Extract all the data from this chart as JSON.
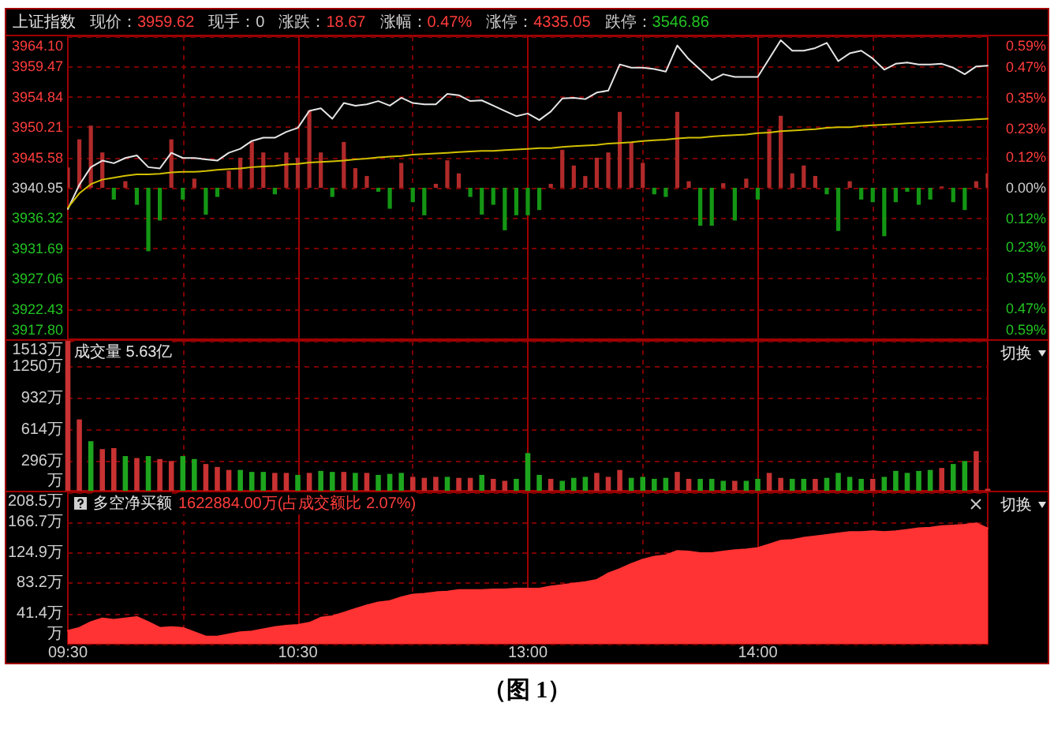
{
  "chart_data": [
    {
      "type": "line",
      "title": "上证指数",
      "annotations": [
        "现价：3959.62",
        "现手：0",
        "涨跌：18.67",
        "涨幅：0.47%",
        "涨停：4335.05",
        "跌停：3546.86"
      ],
      "categories": [
        null,
        null,
        null,
        null,
        null,
        null,
        null,
        null,
        null,
        null,
        null,
        null,
        null,
        null,
        null,
        null,
        null,
        null,
        null,
        null,
        null,
        null,
        null,
        null,
        null,
        null,
        null,
        null,
        null,
        null,
        null,
        null,
        null,
        null,
        null,
        null,
        null,
        null,
        null,
        null,
        null,
        null,
        null,
        null,
        null,
        null,
        null,
        null,
        null,
        null,
        null,
        null,
        null,
        null,
        null,
        null,
        null,
        null,
        null,
        null,
        null,
        null,
        null,
        null,
        null,
        null,
        null,
        null,
        null,
        null,
        null,
        null,
        null,
        null,
        null,
        null,
        null,
        null,
        null,
        null,
        null
      ],
      "series": [
        {
          "color": "#e6e6e6",
          "values": [
            3937.7,
            3941.4,
            3944.1,
            3945.1,
            3944.7,
            3945.5,
            3945.9,
            3944.1,
            3943.9,
            3946.3,
            3945.5,
            3945.5,
            3945.3,
            3945.1,
            3946.3,
            3946.9,
            3948.1,
            3948.6,
            3948.6,
            3949.5,
            3950.1,
            3952.7,
            3953.1,
            3951.5,
            3953.9,
            3953.5,
            3953.7,
            3954.2,
            3953.5,
            3954.7,
            3953.9,
            3953.7,
            3953.7,
            3955.3,
            3955.1,
            3954.2,
            3954.3,
            3953.5,
            3952.7,
            3951.9,
            3952.3,
            3951.3,
            3952.6,
            3954.6,
            3954.7,
            3954.5,
            3955.5,
            3955.8,
            3959.8,
            3959.3,
            3959.3,
            3959.1,
            3958.7,
            3962.7,
            3960.6,
            3959.0,
            3957.4,
            3958.3,
            3957.9,
            3957.9,
            3957.9,
            3960.7,
            3963.5,
            3961.9,
            3961.9,
            3962.3,
            3963.1,
            3960.3,
            3961.5,
            3961.9,
            3960.7,
            3959.0,
            3959.9,
            3960.1,
            3959.8,
            3959.8,
            3959.9,
            3959.3,
            3958.3,
            3959.5,
            3959.6
          ]
        },
        {
          "color": "#d2c000",
          "values": [
            3937.9,
            3940.1,
            3941.5,
            3942.2,
            3942.5,
            3942.8,
            3943.0,
            3943.0,
            3943.1,
            3943.3,
            3943.4,
            3943.4,
            3943.5,
            3943.7,
            3943.8,
            3943.9,
            3944.1,
            3944.2,
            3944.3,
            3944.5,
            3944.6,
            3944.8,
            3944.9,
            3945.0,
            3945.1,
            3945.3,
            3945.4,
            3945.6,
            3945.7,
            3945.8,
            3946.0,
            3946.1,
            3946.2,
            3946.3,
            3946.4,
            3946.5,
            3946.6,
            3946.6,
            3946.7,
            3946.8,
            3946.9,
            3947.0,
            3947.0,
            3947.2,
            3947.3,
            3947.4,
            3947.5,
            3947.7,
            3947.8,
            3947.9,
            3948.1,
            3948.2,
            3948.3,
            3948.5,
            3948.6,
            3948.6,
            3948.8,
            3948.9,
            3949.0,
            3949.1,
            3949.3,
            3949.4,
            3949.6,
            3949.7,
            3949.8,
            3949.9,
            3950.1,
            3950.2,
            3950.2,
            3950.4,
            3950.5,
            3950.6,
            3950.7,
            3950.8,
            3950.9,
            3951.0,
            3951.1,
            3951.2,
            3951.3,
            3951.4,
            3951.5
          ]
        },
        {
          "type": "bar",
          "base": [
            3940.95,
            3940.95,
            3940.95,
            3940.95,
            3940.95,
            3940.95,
            3940.95,
            3940.95,
            3940.95,
            3940.95,
            3940.95,
            3940.95,
            3940.95,
            3940.95,
            3940.95,
            3940.95,
            3940.95,
            3940.95,
            3940.95,
            3940.95,
            3940.95,
            3940.95,
            3940.95,
            3940.95,
            3940.95,
            3940.95,
            3940.95,
            3940.95,
            3940.95,
            3940.95,
            3940.95,
            3940.95,
            3940.95,
            3940.95,
            3940.95,
            3940.95,
            3940.95,
            3940.95,
            3940.95,
            3940.95,
            3940.95,
            3940.95,
            3940.95,
            3940.95,
            3940.95,
            3940.95,
            3940.95,
            3940.95,
            3940.95,
            3940.95,
            3940.95,
            3940.95,
            3940.95,
            3940.95,
            3940.95,
            3940.95,
            3940.95,
            3940.95,
            3940.95,
            3940.95,
            3940.95,
            3940.95,
            3940.95,
            3940.95,
            3940.95,
            3940.95,
            3940.95,
            3940.95,
            3940.95,
            3940.95,
            3940.95,
            3940.95,
            3940.95,
            3940.95,
            3940.95,
            3940.95,
            3940.95,
            3940.95,
            3940.95,
            3940.95,
            3940.95
          ],
          "values": [
            3.1,
            7.4,
            9.5,
            5.4,
            -1.8,
            1.0,
            -2.6,
            -9.7,
            -5.0,
            7.4,
            -1.8,
            1.4,
            -4.1,
            -1.4,
            2.6,
            4.6,
            7.0,
            5.4,
            -1.0,
            5.4,
            4.6,
            11.8,
            5.4,
            -1.4,
            7.0,
            3.0,
            1.8,
            -0.6,
            -3.2,
            3.8,
            -2.2,
            -4.2,
            0.6,
            4.2,
            2.2,
            -1.4,
            -4.1,
            -2.6,
            -6.5,
            -4.2,
            -4.2,
            -3.4,
            0.6,
            5.8,
            3.4,
            1.8,
            4.6,
            5.4,
            11.6,
            7.0,
            3.8,
            -1.0,
            -1.4,
            11.6,
            1.0,
            -5.8,
            -5.8,
            0.7,
            -5.0,
            1.4,
            -1.8,
            9.0,
            11.0,
            2.2,
            3.4,
            1.8,
            -1.0,
            -6.6,
            1.0,
            -1.8,
            -2.2,
            -7.4,
            -2.2,
            -0.6,
            -2.6,
            -1.8,
            0.2,
            -2.2,
            -3.4,
            1.0,
            2.2
          ],
          "colors": [
            "#b02a2a",
            "#b02a2a",
            "#b02a2a",
            "#b02a2a",
            "#149614",
            "#b02a2a",
            "#149614",
            "#149614",
            "#149614",
            "#b02a2a",
            "#149614",
            "#b02a2a",
            "#149614",
            "#149614",
            "#b02a2a",
            "#b02a2a",
            "#b02a2a",
            "#b02a2a",
            "#149614",
            "#b02a2a",
            "#b02a2a",
            "#b02a2a",
            "#b02a2a",
            "#149614",
            "#b02a2a",
            "#b02a2a",
            "#b02a2a",
            "#149614",
            "#149614",
            "#b02a2a",
            "#149614",
            "#149614",
            "#b02a2a",
            "#b02a2a",
            "#b02a2a",
            "#149614",
            "#149614",
            "#149614",
            "#149614",
            "#149614",
            "#149614",
            "#149614",
            "#b02a2a",
            "#b02a2a",
            "#b02a2a",
            "#b02a2a",
            "#b02a2a",
            "#b02a2a",
            "#b02a2a",
            "#b02a2a",
            "#b02a2a",
            "#149614",
            "#149614",
            "#b02a2a",
            "#b02a2a",
            "#149614",
            "#149614",
            "#b02a2a",
            "#149614",
            "#b02a2a",
            "#149614",
            "#b02a2a",
            "#b02a2a",
            "#b02a2a",
            "#b02a2a",
            "#b02a2a",
            "#149614",
            "#149614",
            "#b02a2a",
            "#149614",
            "#149614",
            "#149614",
            "#149614",
            "#149614",
            "#149614",
            "#149614",
            "#b02a2a",
            "#149614",
            "#149614",
            "#b02a2a",
            "#b02a2a"
          ]
        }
      ],
      "ylim": [
        3917.8,
        3964.1
      ],
      "yticks": [
        {
          "value": 3917.8,
          "label": "3917.80"
        },
        3922.43,
        3927.06,
        3931.69,
        3936.32,
        3940.95,
        3945.58,
        3950.21,
        3954.84,
        3959.47,
        {
          "value": 3964.1,
          "label": "3964.10"
        }
      ],
      "y2lim": [
        -0.59,
        0.59
      ],
      "y2ticks": [
        {
          "value": -0.59,
          "label": "0.59%"
        },
        {
          "value": -0.47,
          "label": "0.47%"
        },
        {
          "value": -0.35,
          "label": "0.35%"
        },
        {
          "value": -0.23,
          "label": "0.23%"
        },
        {
          "value": -0.12,
          "label": "0.12%"
        },
        {
          "value": 0,
          "label": "0.00%"
        },
        {
          "value": 0.12,
          "label": "0.12%"
        },
        {
          "value": 0.23,
          "label": "0.23%"
        },
        {
          "value": 0.35,
          "label": "0.35%"
        },
        {
          "value": 0.47,
          "label": "0.47%"
        },
        {
          "value": 0.59,
          "label": "0.59%"
        }
      ],
      "grid": true,
      "tick_labels": "y"
    },
    {
      "type": "bar",
      "title": "成交量 5.63亿",
      "annotations": [
        "切换"
      ],
      "categories": [
        null,
        null,
        null,
        null,
        null,
        null,
        null,
        null,
        null,
        null,
        null,
        null,
        null,
        null,
        null,
        null,
        null,
        null,
        null,
        null,
        null,
        null,
        null,
        null,
        null,
        null,
        null,
        null,
        null,
        null,
        null,
        null,
        null,
        null,
        null,
        null,
        null,
        null,
        null,
        null,
        null,
        null,
        null,
        null,
        null,
        null,
        null,
        null,
        null,
        null,
        null,
        null,
        null,
        null,
        null,
        null,
        null,
        null,
        null,
        null,
        null,
        null,
        null,
        null,
        null,
        null,
        null,
        null,
        null,
        null,
        null,
        null,
        null,
        null,
        null,
        null,
        null,
        null,
        null,
        null,
        null
      ],
      "values": [
        1513,
        720,
        500,
        420,
        430,
        350,
        330,
        350,
        320,
        300,
        350,
        320,
        270,
        240,
        210,
        210,
        190,
        190,
        180,
        180,
        160,
        180,
        200,
        190,
        190,
        180,
        180,
        160,
        170,
        180,
        140,
        130,
        140,
        140,
        130,
        130,
        160,
        120,
        100,
        120,
        380,
        160,
        120,
        100,
        130,
        140,
        180,
        140,
        210,
        130,
        140,
        120,
        130,
        190,
        120,
        120,
        120,
        100,
        100,
        100,
        120,
        180,
        130,
        120,
        120,
        120,
        130,
        180,
        140,
        120,
        120,
        140,
        200,
        180,
        200,
        210,
        230,
        270,
        300,
        400,
        20
      ],
      "colors": [
        "#c83232",
        "#c83232",
        "#1ea51e",
        "#c83232",
        "#c83232",
        "#1ea51e",
        "#c83232",
        "#1ea51e",
        "#c83232",
        "#c83232",
        "#1ea51e",
        "#1ea51e",
        "#c83232",
        "#c83232",
        "#c83232",
        "#1ea51e",
        "#1ea51e",
        "#1ea51e",
        "#c83232",
        "#c83232",
        "#1ea51e",
        "#c83232",
        "#1ea51e",
        "#1ea51e",
        "#c83232",
        "#1ea51e",
        "#c83232",
        "#1ea51e",
        "#1ea51e",
        "#1ea51e",
        "#c83232",
        "#c83232",
        "#c83232",
        "#1ea51e",
        "#c83232",
        "#c83232",
        "#1ea51e",
        "#c83232",
        "#c83232",
        "#1ea51e",
        "#1ea51e",
        "#1ea51e",
        "#c83232",
        "#1ea51e",
        "#1ea51e",
        "#1ea51e",
        "#c83232",
        "#c83232",
        "#c83232",
        "#1ea51e",
        "#1ea51e",
        "#1ea51e",
        "#1ea51e",
        "#c83232",
        "#c83232",
        "#1ea51e",
        "#1ea51e",
        "#1ea51e",
        "#c83232",
        "#1ea51e",
        "#1ea51e",
        "#c83232",
        "#c83232",
        "#1ea51e",
        "#1ea51e",
        "#c83232",
        "#1ea51e",
        "#1ea51e",
        "#1ea51e",
        "#1ea51e",
        "#c83232",
        "#1ea51e",
        "#1ea51e",
        "#1ea51e",
        "#1ea51e",
        "#1ea51e",
        "#c83232",
        "#1ea51e",
        "#1ea51e",
        "#c83232",
        "#c83232"
      ],
      "ylim": [
        0,
        1513
      ],
      "yticks": [
        {
          "value": 0,
          "label": "万"
        },
        {
          "value": 296,
          "label": "296万"
        },
        {
          "value": 614,
          "label": "614万"
        },
        {
          "value": 932,
          "label": "932万"
        },
        {
          "value": 1250,
          "label": "1250万"
        },
        {
          "value": 1513,
          "label": "1513万"
        }
      ],
      "grid": true,
      "tick_labels": "y"
    },
    {
      "type": "area",
      "title": "多空净买额",
      "subtitle": "1622884.00万(占成交额比 2.07%)",
      "annotations": [
        "切换",
        "（图 1）"
      ],
      "categories": [
        "09:30",
        null,
        null,
        null,
        null,
        null,
        null,
        null,
        null,
        null,
        null,
        null,
        null,
        null,
        null,
        null,
        null,
        null,
        null,
        null,
        "10:30",
        null,
        null,
        null,
        null,
        null,
        null,
        null,
        null,
        null,
        null,
        null,
        null,
        null,
        null,
        null,
        null,
        null,
        null,
        null,
        "13:00",
        null,
        null,
        null,
        null,
        null,
        null,
        null,
        null,
        null,
        null,
        null,
        null,
        null,
        null,
        null,
        null,
        null,
        null,
        null,
        "14:00",
        null,
        null,
        null,
        null,
        null,
        null,
        null,
        null,
        null,
        null,
        null,
        null,
        null,
        null,
        null,
        null,
        null,
        null,
        null,
        null
      ],
      "values": [
        18,
        22,
        30,
        35,
        33,
        35,
        37,
        30,
        22,
        23,
        22,
        16,
        10,
        10,
        13,
        16,
        17,
        20,
        23,
        25,
        26,
        29,
        36,
        38,
        43,
        48,
        53,
        57,
        59,
        64,
        68,
        69,
        71,
        72,
        74,
        74,
        74,
        75,
        75,
        76,
        76,
        76,
        79,
        81,
        83,
        85,
        88,
        97,
        103,
        110,
        116,
        120,
        122,
        128,
        127,
        125,
        125,
        127,
        129,
        130,
        132,
        137,
        142,
        143,
        146,
        148,
        150,
        152,
        154,
        154,
        155,
        154,
        155,
        157,
        159,
        160,
        162,
        163,
        164,
        166,
        159
      ],
      "color": "#ff3333",
      "ylim": [
        0,
        208.5
      ],
      "yticks": [
        {
          "value": 0,
          "label": "万"
        },
        {
          "value": 41.4,
          "label": "41.4万"
        },
        {
          "value": 83.2,
          "label": "83.2万"
        },
        {
          "value": 124.9,
          "label": "124.9万"
        },
        {
          "value": 166.7,
          "label": "166.7万"
        },
        {
          "value": 208.5,
          "label": "208.5万"
        }
      ],
      "grid": true
    }
  ]
}
